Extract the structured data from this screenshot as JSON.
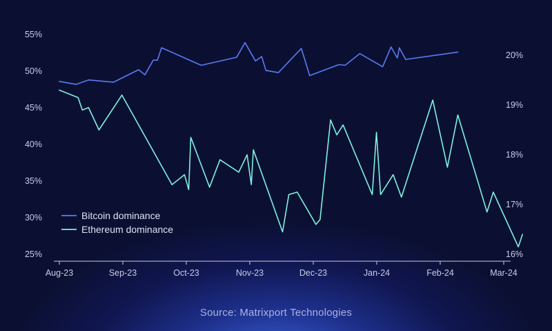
{
  "source_note": "Source: Matrixport Technologies",
  "colors": {
    "background": "#0b1033",
    "btc": "#5b7cf2",
    "eth": "#7ff2de",
    "axis": "#c9cde6"
  },
  "chart_data": {
    "type": "line",
    "x_ticks": [
      "Aug-23",
      "Sep-23",
      "Oct-23",
      "Nov-23",
      "Dec-23",
      "Jan-24",
      "Feb-24",
      "Mar-24"
    ],
    "left_axis": {
      "ticks": [
        "25%",
        "30%",
        "35%",
        "40%",
        "45%",
        "50%",
        "55%"
      ],
      "range": [
        25,
        55
      ]
    },
    "right_axis": {
      "ticks": [
        "16%",
        "17%",
        "18%",
        "19%",
        "20%"
      ],
      "range": [
        16,
        20.5
      ]
    },
    "grid": false,
    "legend_position": "bottom-left",
    "series": [
      {
        "name": "Bitcoin dominance",
        "axis": "left",
        "color": "#5b7cf2",
        "points": [
          [
            "2023-08-01",
            48.6
          ],
          [
            "2023-08-09",
            48.2
          ],
          [
            "2023-08-15",
            48.8
          ],
          [
            "2023-08-27",
            48.5
          ],
          [
            "2023-09-08",
            50.2
          ],
          [
            "2023-09-11",
            49.5
          ],
          [
            "2023-09-15",
            51.5
          ],
          [
            "2023-09-17",
            51.5
          ],
          [
            "2023-09-19",
            53.2
          ],
          [
            "2023-10-08",
            50.8
          ],
          [
            "2023-10-25",
            51.9
          ],
          [
            "2023-10-29",
            53.9
          ],
          [
            "2023-11-03",
            51.4
          ],
          [
            "2023-11-06",
            52.0
          ],
          [
            "2023-11-08",
            50.1
          ],
          [
            "2023-11-14",
            49.8
          ],
          [
            "2023-11-25",
            53.1
          ],
          [
            "2023-11-29",
            49.4
          ],
          [
            "2023-12-13",
            50.9
          ],
          [
            "2023-12-16",
            50.8
          ],
          [
            "2023-12-23",
            52.4
          ],
          [
            "2024-01-03",
            50.6
          ],
          [
            "2024-01-07",
            53.3
          ],
          [
            "2024-01-10",
            51.8
          ],
          [
            "2024-01-11",
            53.2
          ],
          [
            "2024-01-14",
            51.6
          ],
          [
            "2024-02-08",
            52.6
          ]
        ]
      },
      {
        "name": "Ethereum dominance",
        "axis": "right",
        "color": "#7ff2de",
        "points": [
          [
            "2023-08-01",
            19.3
          ],
          [
            "2023-08-10",
            19.15
          ],
          [
            "2023-08-12",
            18.9
          ],
          [
            "2023-08-15",
            18.95
          ],
          [
            "2023-08-20",
            18.5
          ],
          [
            "2023-08-31",
            19.2
          ],
          [
            "2023-09-24",
            17.4
          ],
          [
            "2023-09-30",
            17.6
          ],
          [
            "2023-10-02",
            17.3
          ],
          [
            "2023-10-03",
            18.35
          ],
          [
            "2023-10-12",
            17.35
          ],
          [
            "2023-10-17",
            17.9
          ],
          [
            "2023-10-26",
            17.65
          ],
          [
            "2023-10-30",
            18.0
          ],
          [
            "2023-11-01",
            17.4
          ],
          [
            "2023-11-02",
            18.1
          ],
          [
            "2023-11-16",
            16.45
          ],
          [
            "2023-11-19",
            17.2
          ],
          [
            "2023-11-23",
            17.25
          ],
          [
            "2023-12-02",
            16.6
          ],
          [
            "2023-12-04",
            16.7
          ],
          [
            "2023-12-09",
            18.7
          ],
          [
            "2023-12-12",
            18.4
          ],
          [
            "2023-12-15",
            18.6
          ],
          [
            "2023-12-29",
            17.2
          ],
          [
            "2023-12-31",
            18.45
          ],
          [
            "2024-01-02",
            17.2
          ],
          [
            "2024-01-08",
            17.6
          ],
          [
            "2024-01-12",
            17.15
          ],
          [
            "2024-01-27",
            19.1
          ],
          [
            "2024-02-03",
            17.75
          ],
          [
            "2024-02-08",
            18.8
          ],
          [
            "2024-02-22",
            16.85
          ],
          [
            "2024-02-25",
            17.25
          ],
          [
            "2024-03-08",
            16.15
          ],
          [
            "2024-03-10",
            16.4
          ]
        ]
      }
    ]
  }
}
